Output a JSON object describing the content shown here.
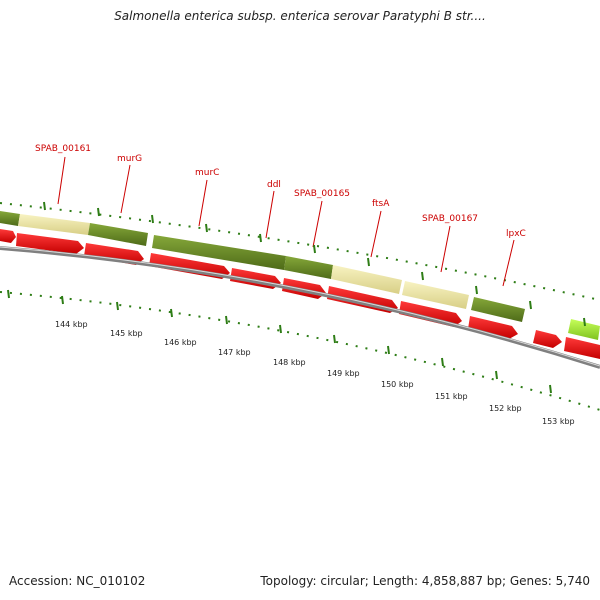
{
  "header": {
    "title": "Salmonella enterica subsp. enterica serovar Paratyphi B str...."
  },
  "footer": {
    "accession": "Accession: NC_010102",
    "summary": "Topology: circular; Length: 4,858,887 bp; Genes: 5,740"
  },
  "gene_labels": [
    {
      "name": "SPAB_00161"
    },
    {
      "name": "murG"
    },
    {
      "name": "murC"
    },
    {
      "name": "ddl"
    },
    {
      "name": "SPAB_00165"
    },
    {
      "name": "ftsA"
    },
    {
      "name": "SPAB_00167"
    },
    {
      "name": "lpxC"
    }
  ],
  "scale_labels": [
    "144 kbp",
    "145 kbp",
    "146 kbp",
    "147 kbp",
    "148 kbp",
    "149 kbp",
    "150 kbp",
    "151 kbp",
    "152 kbp",
    "153 kbp"
  ],
  "colors": {
    "label_red": "#cc0000",
    "feature_red": "#e80000",
    "feature_olive": "#6b8e23",
    "feature_khaki": "#eee8aa",
    "feature_lime": "#9acd32",
    "backbone_grey": "#808080",
    "tick_green": "#2e7d16"
  }
}
